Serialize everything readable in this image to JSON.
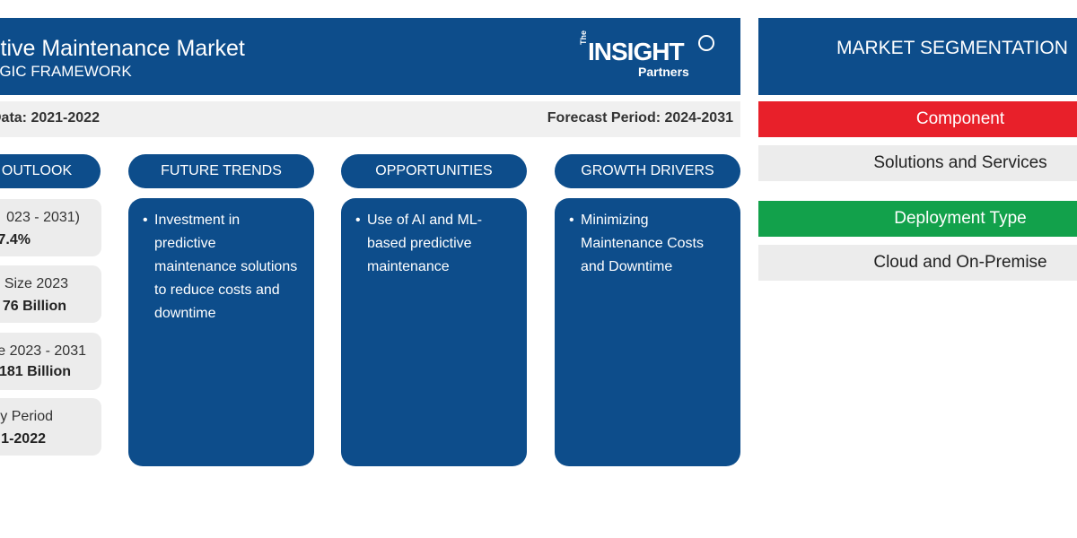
{
  "header": {
    "title": "ctive Maintenance Market",
    "subtitle": "EGIC FRAMEWORK",
    "logo": {
      "the": "The",
      "insight": "INSIGHT",
      "partners": "Partners"
    }
  },
  "period": {
    "base": "Data: 2021-2022",
    "forecast": "Forecast Period: 2024-2031"
  },
  "columns": {
    "outlook": "OUTLOOK",
    "trends": "FUTURE TRENDS",
    "opportunities": "OPPORTUNITIES",
    "drivers": "GROWTH DRIVERS"
  },
  "stats": [
    {
      "label": "023 - 2031)",
      "value": "7.4%"
    },
    {
      "label": "Size 2023",
      "value": "76 Billion"
    },
    {
      "label": "e 2023 - 2031",
      "value": "181 Billion"
    },
    {
      "label": "y Period",
      "value": "1-2022"
    }
  ],
  "cards": {
    "trends": "Investment in predictive maintenance solutions to reduce costs and downtime",
    "opportunities": "Use of AI and ML-based predictive maintenance",
    "drivers": "Minimizing Maintenance Costs and Downtime"
  },
  "segmentation": {
    "title": "MARKET SEGMENTATION",
    "component_label": "Component",
    "component_value": "Solutions and Services",
    "deployment_label": "Deployment Type",
    "deployment_value": "Cloud and On-Premise"
  },
  "colors": {
    "navy": "#0d4d8b",
    "red": "#e8202a",
    "green": "#12a14b",
    "light_gray": "#ececec"
  }
}
